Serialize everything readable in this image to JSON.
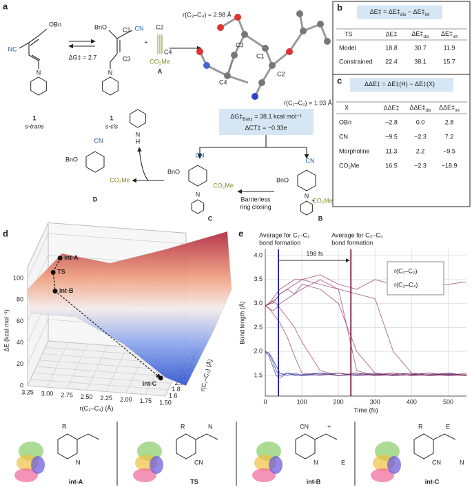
{
  "panels": [
    "a",
    "b",
    "c",
    "d",
    "e"
  ],
  "scheme": {
    "s_trans": {
      "cn": "NC",
      "obn": "OBn",
      "n": "N",
      "number": "1",
      "label": "s-trans"
    },
    "equilibrium": "ΔG‡ = 2.7",
    "s_cis": {
      "bno": "BnO",
      "c1": "C1",
      "cn": "CN",
      "c3": "C3",
      "n": "N",
      "number": "1",
      "label": "s-cis"
    },
    "plus": "+",
    "A": {
      "c2": "C2",
      "c4": "C4",
      "ester": "CO₂Me",
      "label": "A"
    },
    "ts_structure": {
      "r34": "r(C₃–C₄) = 2.98 Å",
      "r12": "r(C₁–C₂) = 1.93 Å",
      "c3": "C3",
      "c1": "C1",
      "c4": "C4",
      "c2": "C2"
    },
    "energy_box": {
      "dg": [
        "ΔG‡",
        "Boltz",
        " = 38.1 kcal mol⁻¹"
      ],
      "ct": "ΔCT‡ = −0.33e"
    },
    "morpholine": {
      "n": "N",
      "h": "H"
    },
    "D": {
      "cn": "CN",
      "bno": "BnO",
      "ester": "CO₂Me",
      "label": "D"
    },
    "C": {
      "cn": "CN",
      "bno": "BnO",
      "ester": "CO₂Me",
      "n": "N",
      "label": "C"
    },
    "B": {
      "cn": "CN",
      "bno": "BnO",
      "ester": "CO₂Me",
      "n": "N",
      "charge": "+",
      "label": "B"
    },
    "ring_closing": [
      "Barrierless",
      "ring closing"
    ]
  },
  "tables": [
    {
      "formula": [
        "ΔE‡ = ΔE‡",
        "dis",
        " − ΔE‡",
        "int"
      ],
      "headers": [
        "TS",
        "ΔE‡",
        {
          "main": "ΔE‡",
          "sub": "dis"
        },
        {
          "main": "ΔE‡",
          "sub": "int"
        }
      ],
      "rows": [
        [
          "Model",
          "18.8",
          "30.7",
          "11.9"
        ],
        [
          "Constrained",
          "22.4",
          "38.1",
          "15.7"
        ]
      ]
    },
    {
      "formula": [
        "ΔΔE‡ = ΔE‡(H) − ΔE‡(X)"
      ],
      "headers": [
        "X",
        "ΔΔE‡",
        {
          "main": "ΔΔE‡",
          "sub": "dis"
        },
        {
          "main": "ΔΔE‡",
          "sub": "int"
        }
      ],
      "rows": [
        [
          "OBn",
          "−2.8",
          "0.0",
          "2.8"
        ],
        [
          "CN",
          "−9.5",
          "−2.3",
          "7.2"
        ],
        [
          "Morpholine",
          "11.3",
          "2.2",
          "−9.5"
        ],
        [
          "CO₂Me",
          "16.5",
          "−2.3",
          "−18.9"
        ]
      ]
    }
  ],
  "chart_data": [
    {
      "type": "surface3d",
      "xlabel": "r(C₃–C₄) (Å)",
      "ylabel": "r(C₁–C₂) (Å)",
      "zlabel": "ΔE (kcal mol⁻¹)",
      "xlim": [
        3.25,
        1.5
      ],
      "xticks": [
        3.25,
        {
          "value": 3,
          "label": "3.00"
        },
        2.75,
        {
          "value": 2.5,
          "label": "2.50"
        },
        2.25,
        {
          "value": 2,
          "label": "2.00"
        },
        1.75,
        {
          "value": 1.5,
          "label": "1.50"
        }
      ],
      "ylim": [
        1.6,
        3.0
      ],
      "yticks": [
        1.6,
        1.8,
        {
          "value": 2,
          "label": "2.0"
        },
        2.2,
        2.4,
        2.6,
        2.8,
        {
          "value": 3,
          "label": "3.0"
        }
      ],
      "zlim": [
        0,
        110
      ],
      "zticks": [
        0,
        20,
        40,
        60,
        80,
        100
      ],
      "points": {
        "labels": [
          "int-A",
          "TS",
          "int-B",
          "int-C"
        ],
        "x": [
          3.1,
          3.0,
          2.9,
          1.55
        ],
        "y": [
          3.0,
          2.0,
          1.6,
          1.55
        ],
        "z": [
          78,
          95,
          90,
          18
        ]
      }
    },
    {
      "type": "line",
      "xlabel": "Time (fs)",
      "ylabel": "Bond length (Å)",
      "xlim": [
        0,
        550
      ],
      "xticks": [
        0,
        100,
        200,
        300,
        400,
        500
      ],
      "ylim": [
        1.07,
        4.13
      ],
      "yticks": [
        1.5,
        {
          "value": 2,
          "label": "2.0"
        },
        2.5,
        {
          "value": 3,
          "label": "3.0"
        },
        3.5,
        {
          "value": 4,
          "label": "4.0"
        }
      ],
      "grid": true,
      "legend": "upper right",
      "x": [
        0,
        10,
        20,
        30,
        40,
        60,
        80,
        100,
        150,
        200,
        250,
        300,
        350,
        400,
        450,
        500,
        550
      ],
      "series": [
        {
          "name": "r(C₁–C₂)",
          "color": "#1c1c96",
          "trajectories": [
            [
              2.0,
              1.95,
              1.8,
              1.6,
              1.5,
              1.55,
              1.5,
              1.52,
              1.55,
              1.5,
              1.55,
              1.5,
              1.52,
              1.55,
              1.5,
              1.53,
              1.5
            ],
            [
              2.0,
              1.97,
              1.85,
              1.7,
              1.55,
              1.5,
              1.55,
              1.5,
              1.52,
              1.55,
              1.5,
              1.53,
              1.5,
              1.52,
              1.55,
              1.5,
              1.52
            ],
            [
              1.98,
              1.9,
              1.7,
              1.5,
              1.45,
              1.55,
              1.52,
              1.5,
              1.55,
              1.5,
              1.52,
              1.55,
              1.5,
              1.52,
              1.5,
              1.55,
              1.5
            ]
          ]
        },
        {
          "name": "r(C₃–C₄)",
          "color": "#8b2a52",
          "trajectories": [
            [
              2.95,
              2.9,
              2.8,
              2.7,
              2.6,
              2.3,
              1.9,
              1.55,
              1.5,
              1.55,
              1.5,
              1.52,
              1.55,
              1.5,
              1.52,
              1.5,
              1.55
            ],
            [
              2.95,
              3.0,
              3.05,
              3.0,
              2.9,
              2.7,
              2.5,
              2.2,
              1.6,
              1.5,
              1.55,
              1.5,
              1.52,
              1.55,
              1.5,
              1.52,
              1.5
            ],
            [
              2.95,
              3.0,
              3.1,
              3.2,
              3.3,
              3.4,
              3.5,
              3.5,
              3.4,
              3.3,
              1.6,
              1.5,
              1.55,
              1.5,
              1.52,
              1.55,
              1.5
            ],
            [
              2.95,
              2.98,
              3.05,
              3.1,
              3.2,
              3.3,
              3.4,
              3.5,
              3.6,
              3.4,
              3.3,
              3.5,
              3.4,
              3.5,
              3.4,
              3.4,
              3.45
            ],
            [
              2.95,
              3.0,
              3.0,
              3.1,
              3.2,
              3.3,
              3.2,
              3.3,
              3.5,
              3.3,
              3.2,
              3.1,
              2.0,
              1.55,
              1.5,
              1.52,
              1.5
            ],
            [
              2.95,
              2.9,
              2.85,
              2.9,
              3.0,
              3.1,
              3.2,
              3.4,
              3.3,
              3.0,
              2.0,
              1.55,
              1.5,
              1.52,
              1.55,
              1.5,
              1.52
            ]
          ]
        }
      ],
      "vlines": [
        {
          "x": 36,
          "label": [
            "Average for C₁–C₂",
            "bond formation"
          ],
          "color": "#1c1c96"
        },
        {
          "x": 234,
          "label": [
            "Average for C₃–C₄",
            "bond formation"
          ],
          "color": "#7b1d44"
        }
      ],
      "interval": {
        "from": 36,
        "to": 234,
        "label": "198 fs"
      }
    }
  ],
  "orbitals": {
    "labels": [
      "int-A",
      "TS",
      "int-B",
      "int-C"
    ],
    "texts": [
      [
        "R",
        "N"
      ],
      [
        "R",
        "CN",
        "N"
      ],
      [
        "CN",
        "N",
        "+",
        "E"
      ],
      [
        "R",
        "CN",
        "E",
        "N"
      ]
    ]
  }
}
